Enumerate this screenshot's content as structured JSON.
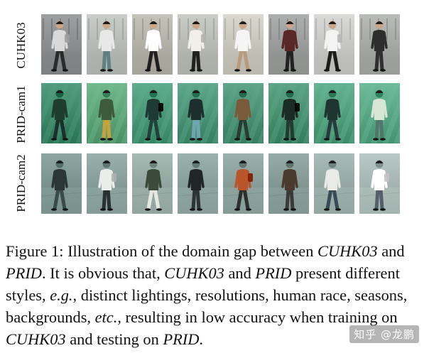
{
  "figure": {
    "rows": [
      {
        "label": "CUHK03",
        "style": "cuhk",
        "tiles": [
          {
            "bg": "#8c8e90",
            "shirt": "#d9d9d9",
            "pants": "#2a2a2a"
          },
          {
            "bg": "#b8bcb8",
            "shirt": "#e8e8e8",
            "pants": "#5f7f80"
          },
          {
            "bg": "#b3b1a8",
            "shirt": "#ffffff",
            "pants": "#1f1f1f"
          },
          {
            "bg": "#b9bcb4",
            "shirt": "#f1efe8",
            "pants": "#202020"
          },
          {
            "bg": "#c9c6bd",
            "shirt": "#f5f5f5",
            "pants": "#b79b7a"
          },
          {
            "bg": "#9b9e9c",
            "shirt": "#5a2727",
            "pants": "#222222"
          },
          {
            "bg": "#c8c8c6",
            "shirt": "#f3f3f3",
            "pants": "#1c1c1c"
          },
          {
            "bg": "#a7aaa6",
            "shirt": "#2d2d2d",
            "pants": "#303030"
          }
        ]
      },
      {
        "label": "PRID-cam1",
        "style": "prid1",
        "tiles": [
          {
            "bg": "#3f8a6a",
            "shirt": "#1f3d2f",
            "pants": "#1c2f2a"
          },
          {
            "bg": "#5fa67d",
            "shirt": "#3d5a3a",
            "pants": "#c9a23a"
          },
          {
            "bg": "#4b9a7a",
            "shirt": "#1e3b33",
            "pants": "#24403a"
          },
          {
            "bg": "#4d9578",
            "shirt": "#1d2f2d",
            "pants": "#6fa6b0"
          },
          {
            "bg": "#4c9276",
            "shirt": "#7a5a3a",
            "pants": "#2a3b35"
          },
          {
            "bg": "#4a9274",
            "shirt": "#1b2b26",
            "pants": "#243a31"
          },
          {
            "bg": "#52a07f",
            "shirt": "#1f3530",
            "pants": "#2a3a3c"
          },
          {
            "bg": "#5aa886",
            "shirt": "#d8e6d6",
            "pants": "#52766c"
          }
        ]
      },
      {
        "label": "PRID-cam2",
        "style": "prid2",
        "tiles": [
          {
            "bg": "#7d9591",
            "shirt": "#2b3636",
            "pants": "#3a4a47"
          },
          {
            "bg": "#889e9a",
            "shirt": "#e9eeea",
            "pants": "#2a3030"
          },
          {
            "bg": "#95a8a1",
            "shirt": "#3b4a3a",
            "pants": "#e6e9e2"
          },
          {
            "bg": "#8aa09c",
            "shirt": "#1f2626",
            "pants": "#2c3435"
          },
          {
            "bg": "#8a9f99",
            "shirt": "#b8552b",
            "pants": "#2b2f2e"
          },
          {
            "bg": "#859a95",
            "shirt": "#4b3a2e",
            "pants": "#3a3b38"
          },
          {
            "bg": "#97aaa5",
            "shirt": "#e8ebe6",
            "pants": "#3a4a55"
          },
          {
            "bg": "#a7b7b3",
            "shirt": "#ffffff",
            "pants": "#53606a"
          }
        ]
      }
    ]
  },
  "caption": {
    "p1": "Figure 1: Illustration of the domain gap between ",
    "e1": "CUHK03",
    "p2": " and ",
    "e2": "PRID",
    "p3": ". It is obvious that, ",
    "e3": "CUHK03",
    "p4": " and ",
    "e4": "PRID",
    "p5": " present different styles, ",
    "e5": "e.g.",
    "p6": ", distinct lightings, resolutions, human race, seasons, backgrounds, ",
    "e6": "etc.",
    "p7": ", resulting in low accuracy when training on ",
    "e7": "CUHK03",
    "p8": " and testing on ",
    "e8": "PRID",
    "p9": "."
  },
  "watermark": "知乎 @龙鹏"
}
